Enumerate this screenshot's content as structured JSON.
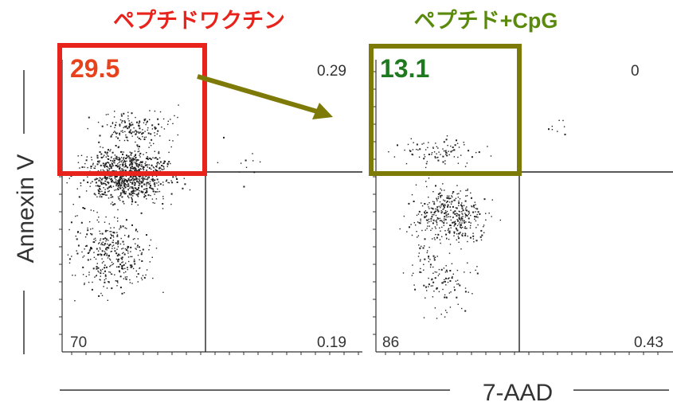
{
  "colors": {
    "left_title": "#e8231c",
    "right_title": "#5a8a0c",
    "left_box": "#e8231c",
    "right_box": "#7d7a08",
    "left_value": "#e8421c",
    "right_value": "#1f7a1f",
    "arrow": "#7d7a08"
  },
  "axes": {
    "ylabel": "Annexin V",
    "xlabel": "7-AAD"
  },
  "chart_data": [
    {
      "type": "scatter",
      "title": "ペプチドワクチン",
      "quadrants": {
        "upper_left": "29.5",
        "upper_right": "0.29",
        "lower_left": "70",
        "lower_right": "0.19"
      },
      "gate": {
        "x_split": 0.6,
        "y_split": 0.7
      },
      "grid": false
    },
    {
      "type": "scatter",
      "title": "ペプチド+CpG",
      "quadrants": {
        "upper_left": "13.1",
        "upper_right": "0",
        "lower_left": "86",
        "lower_right": "0.43"
      },
      "gate": {
        "x_split": 0.6,
        "y_split": 0.7
      },
      "grid": false
    }
  ]
}
